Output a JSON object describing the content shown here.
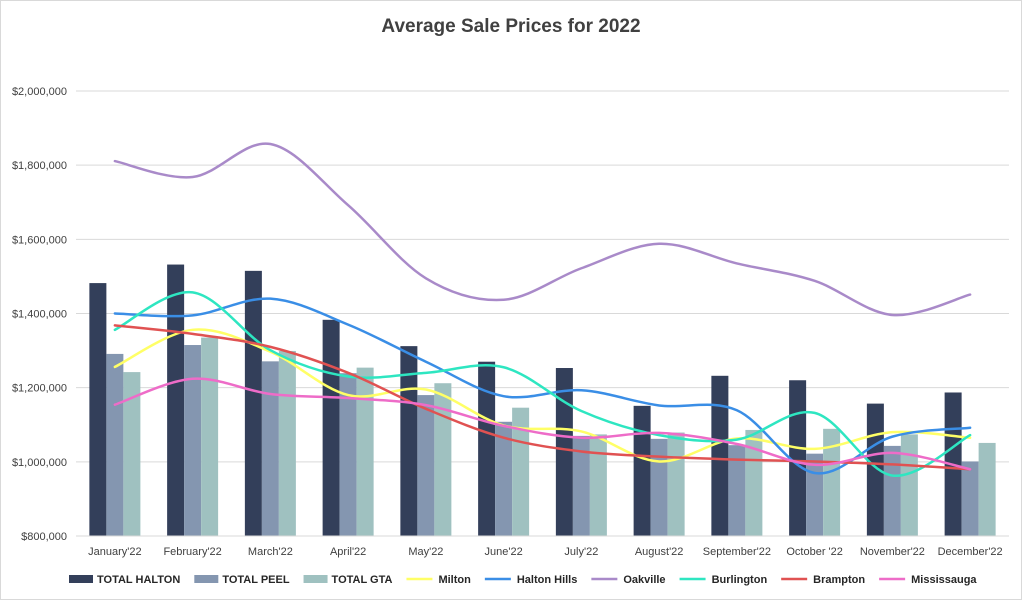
{
  "chart_data": {
    "type": "bar",
    "title": "Average Sale Prices for 2022",
    "xlabel": "",
    "ylabel": "",
    "ylim": [
      800000,
      2000000
    ],
    "ytick_values": [
      800000,
      1000000,
      1200000,
      1400000,
      1600000,
      1800000,
      2000000
    ],
    "ytick_labels": [
      "$800,000",
      "$1,000,000",
      "$1,200,000",
      "$1,400,000",
      "$1,600,000",
      "$1,800,000",
      "$2,000,000"
    ],
    "grid": true,
    "legend_position": "bottom",
    "categories": [
      "January'22",
      "February'22",
      "March'22",
      "April'22",
      "May'22",
      "June'22",
      "July'22",
      "August'22",
      "September'22",
      "October '22",
      "November'22",
      "December'22"
    ],
    "bar_series": [
      {
        "name": "TOTAL HALTON",
        "color": "#333f5a",
        "values": [
          1482000,
          1532000,
          1515000,
          1383000,
          1312000,
          1270000,
          1253000,
          1151000,
          1232000,
          1220000,
          1157000,
          1187000
        ]
      },
      {
        "name": "TOTAL PEEL",
        "color": "#8496b0",
        "values": [
          1291000,
          1315000,
          1271000,
          1239000,
          1180000,
          1108000,
          1070000,
          1062000,
          1045000,
          1022000,
          1043000,
          1001000
        ]
      },
      {
        "name": "TOTAL GTA",
        "color": "#9fc1c0",
        "values": [
          1242000,
          1335000,
          1299000,
          1254000,
          1212000,
          1146000,
          1074000,
          1079000,
          1086000,
          1089000,
          1074000,
          1051000
        ]
      }
    ],
    "line_series": [
      {
        "name": "Milton",
        "color": "#ffff66",
        "values": [
          1256000,
          1356000,
          1297000,
          1180000,
          1195000,
          1098000,
          1082000,
          1001000,
          1063000,
          1035000,
          1080000,
          1065000
        ]
      },
      {
        "name": "Halton Hills",
        "color": "#3a8ee6",
        "values": [
          1400000,
          1395000,
          1440000,
          1370000,
          1270000,
          1177000,
          1193000,
          1152000,
          1139000,
          970000,
          1068000,
          1092000
        ]
      },
      {
        "name": "Oakville",
        "color": "#a98ac9",
        "values": [
          1811000,
          1768000,
          1857000,
          1692000,
          1495000,
          1437000,
          1522000,
          1588000,
          1535000,
          1488000,
          1396000,
          1451000
        ]
      },
      {
        "name": "Burlington",
        "color": "#2ee6c1",
        "values": [
          1356000,
          1457000,
          1301000,
          1230000,
          1240000,
          1255000,
          1137000,
          1072000,
          1060000,
          1132000,
          963000,
          1072000
        ]
      },
      {
        "name": "Brampton",
        "color": "#e05252",
        "values": [
          1368000,
          1345000,
          1310000,
          1240000,
          1143000,
          1065000,
          1028000,
          1014000,
          1006000,
          1001000,
          993000,
          980000
        ]
      },
      {
        "name": "Mississauga",
        "color": "#ee6cc8",
        "values": [
          1154000,
          1224000,
          1183000,
          1172000,
          1153000,
          1097000,
          1065000,
          1078000,
          1048000,
          992000,
          1024000,
          980000
        ]
      }
    ]
  }
}
